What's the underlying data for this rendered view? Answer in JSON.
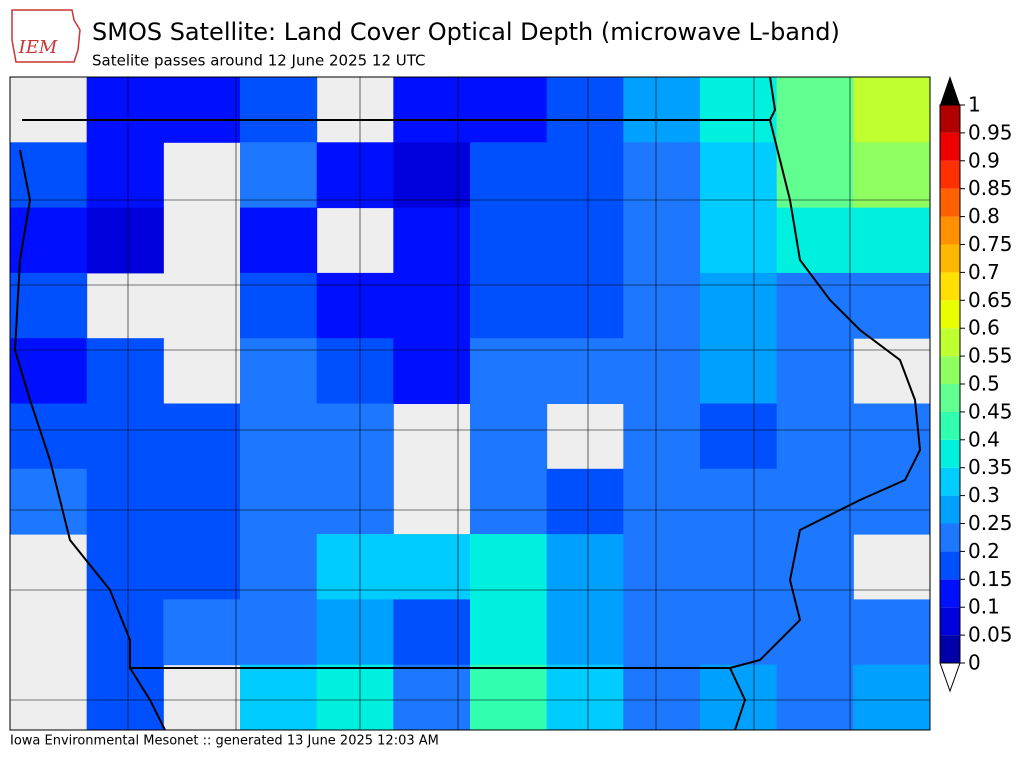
{
  "header": {
    "logo": "IEM",
    "title": "SMOS Satellite: Land Cover Optical Depth (microwave L-band)",
    "subtitle": "Satelite passes around 12 June 2025 12 UTC"
  },
  "map": {
    "grid": [
      [
        null,
        0.1,
        0.12,
        0.15,
        null,
        0.12,
        0.1,
        0.15,
        0.25,
        0.35,
        0.45,
        0.55
      ],
      [
        0.15,
        0.1,
        null,
        0.2,
        0.1,
        0.08,
        0.15,
        0.15,
        0.22,
        0.3,
        0.45,
        0.5
      ],
      [
        0.12,
        0.08,
        null,
        0.12,
        null,
        0.1,
        0.15,
        0.15,
        0.2,
        0.3,
        0.35,
        0.35
      ],
      [
        0.15,
        null,
        null,
        0.18,
        0.12,
        0.1,
        0.18,
        0.15,
        0.2,
        0.25,
        0.22,
        0.2
      ],
      [
        0.12,
        0.17,
        null,
        0.2,
        0.15,
        0.12,
        0.2,
        0.22,
        0.22,
        0.25,
        0.22,
        null
      ],
      [
        0.18,
        0.18,
        0.15,
        0.2,
        0.2,
        null,
        0.2,
        null,
        0.22,
        0.15,
        0.2,
        0.2
      ],
      [
        0.2,
        0.17,
        0.18,
        0.22,
        0.22,
        null,
        0.22,
        0.18,
        0.22,
        0.2,
        0.22,
        0.2
      ],
      [
        null,
        0.18,
        0.15,
        0.22,
        0.3,
        0.3,
        0.38,
        0.25,
        0.22,
        0.2,
        0.2,
        null
      ],
      [
        null,
        0.15,
        0.2,
        0.22,
        0.28,
        0.15,
        0.35,
        0.25,
        0.22,
        0.22,
        0.22,
        0.22
      ],
      [
        null,
        0.18,
        null,
        0.32,
        0.38,
        0.2,
        0.4,
        0.3,
        0.22,
        0.25,
        0.22,
        0.25
      ]
    ],
    "colorbar": {
      "ticks": [
        0,
        0.05,
        0.1,
        0.15,
        0.2,
        0.25,
        0.3,
        0.35,
        0.4,
        0.45,
        0.5,
        0.55,
        0.6,
        0.65,
        0.7,
        0.75,
        0.8,
        0.85,
        0.9,
        0.95,
        1
      ],
      "colors": [
        "#0000aa",
        "#0000dd",
        "#0010ff",
        "#0050ff",
        "#1e78ff",
        "#00a0ff",
        "#00ccff",
        "#00f0e0",
        "#30ffb0",
        "#60ff90",
        "#90ff60",
        "#c0ff30",
        "#e8ff00",
        "#ffe000",
        "#ffb800",
        "#ff9000",
        "#ff6000",
        "#ff3000",
        "#ee0000",
        "#b00000"
      ]
    }
  },
  "footer": "Iowa Environmental Mesonet :: generated 13 June 2025 12:03 AM"
}
